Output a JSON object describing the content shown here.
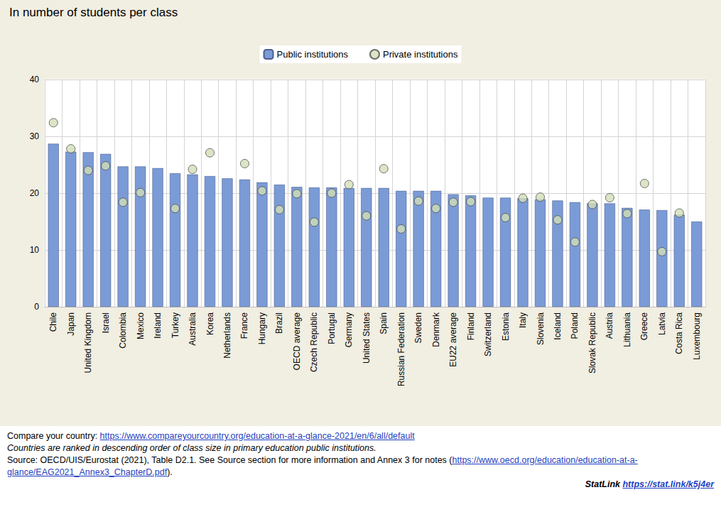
{
  "chart_data": {
    "type": "bar",
    "title": "In number of students per class",
    "categories": [
      "Chile",
      "Japan",
      "United Kingdom",
      "Israel",
      "Colombia",
      "Mexico",
      "Ireland",
      "Turkey",
      "Australia",
      "Korea",
      "Netherlands",
      "France",
      "Hungary",
      "Brazil",
      "OECD average",
      "Czech Republic",
      "Portugal",
      "Germany",
      "United States",
      "Spain",
      "Russian Federation",
      "Sweden",
      "Denmark",
      "EU22 average",
      "Finland",
      "Switzerland",
      "Estonia",
      "Italy",
      "Slovenia",
      "Iceland",
      "Poland",
      "Slovak Republic",
      "Austria",
      "Lithuania",
      "Greece",
      "Latvia",
      "Costa Rica",
      "Luxembourg"
    ],
    "series": [
      {
        "name": "Public institutions",
        "type": "bar",
        "color": "#7b9bd6",
        "values": [
          28.7,
          27.3,
          27.2,
          26.9,
          24.7,
          24.7,
          24.4,
          23.5,
          23.3,
          23.0,
          22.6,
          22.4,
          21.9,
          21.5,
          21.1,
          21.0,
          21.0,
          20.9,
          20.9,
          20.9,
          20.4,
          20.4,
          20.4,
          19.8,
          19.6,
          19.2,
          19.2,
          19.1,
          18.9,
          18.7,
          18.4,
          18.2,
          18.2,
          17.4,
          17.1,
          17.0,
          16.2,
          15.0
        ]
      },
      {
        "name": "Private institutions",
        "type": "scatter",
        "marker": "circle",
        "color": "#d2dfb8",
        "values": [
          32.4,
          27.8,
          24.0,
          24.8,
          18.4,
          20.1,
          null,
          17.3,
          24.2,
          27.1,
          null,
          25.2,
          20.4,
          17.1,
          19.9,
          14.9,
          20.0,
          21.5,
          16.0,
          24.3,
          13.7,
          18.6,
          17.3,
          18.4,
          18.5,
          null,
          15.7,
          19.1,
          19.3,
          15.3,
          11.4,
          18.0,
          19.2,
          16.4,
          21.7,
          9.7,
          16.5,
          null
        ]
      }
    ],
    "ylim": [
      0,
      40
    ],
    "yticks": [
      0,
      10,
      20,
      30,
      40
    ],
    "grid": true,
    "legend": "top",
    "annotations": [
      "Compare your country: https://www.compareyourcountry.org/education-at-a-glance-2021/en/6/all/default",
      "Countries are ranked in descending order of class size in primary education public institutions.",
      "Source: OECD/UIS/Eurostat (2021), Table D2.1. See Source section for more information and Annex 3 for notes (https://www.oecd.org/education/education-at-a-glance/EAG2021_Annex3_ChapterD.pdf).",
      "StatLink https://stat.link/k5j4er"
    ]
  }
}
